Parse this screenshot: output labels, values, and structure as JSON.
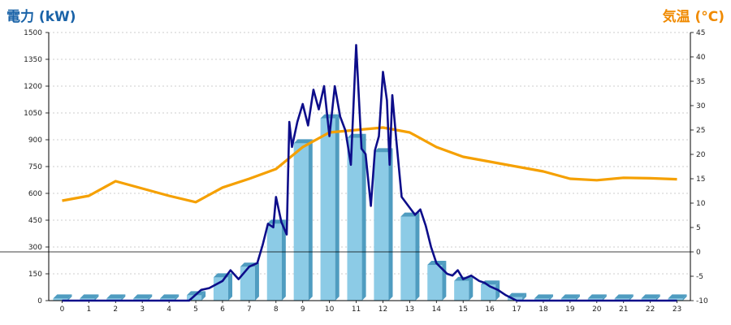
{
  "chart_data": {
    "type": "bar",
    "left_axis_title": "電力 (kW)",
    "right_axis_title": "気温 (°C)",
    "x_ticks": [
      "0",
      "1",
      "2",
      "3",
      "4",
      "5",
      "6",
      "7",
      "8",
      "9",
      "10",
      "11",
      "12",
      "13",
      "14",
      "15",
      "16",
      "17",
      "18",
      "19",
      "20",
      "21",
      "22",
      "23"
    ],
    "left_ticks": [
      "0",
      "150",
      "300",
      "450",
      "600",
      "750",
      "900",
      "1050",
      "1200",
      "1350",
      "1500"
    ],
    "right_ticks": [
      "-10",
      "-5",
      "0",
      "5",
      "10",
      "15",
      "20",
      "25",
      "30",
      "35",
      "40",
      "45"
    ],
    "ylim_left": [
      0,
      1500
    ],
    "ylim_right": [
      -10,
      45
    ],
    "grid": true,
    "colors": {
      "bars": "#8ccbe6",
      "bars_dark": "#4f9cc0",
      "power_line": "#0d0d8a",
      "temp_line": "#f5a000",
      "grid": "#bfbfbf",
      "left_title": "#1a63a8",
      "right_title": "#f08a00"
    },
    "bars": [
      {
        "x": 0,
        "value": 0
      },
      {
        "x": 1,
        "value": 0
      },
      {
        "x": 2,
        "value": 0
      },
      {
        "x": 3,
        "value": 0
      },
      {
        "x": 4,
        "value": 0
      },
      {
        "x": 5,
        "value": 30
      },
      {
        "x": 6,
        "value": 130
      },
      {
        "x": 7,
        "value": 190
      },
      {
        "x": 8,
        "value": 430
      },
      {
        "x": 9,
        "value": 880
      },
      {
        "x": 10,
        "value": 1020
      },
      {
        "x": 11,
        "value": 910
      },
      {
        "x": 12,
        "value": 830
      },
      {
        "x": 13,
        "value": 470
      },
      {
        "x": 14,
        "value": 200
      },
      {
        "x": 15,
        "value": 110
      },
      {
        "x": 16,
        "value": 90
      },
      {
        "x": 17,
        "value": 20
      },
      {
        "x": 18,
        "value": 0
      },
      {
        "x": 19,
        "value": 0
      },
      {
        "x": 20,
        "value": 0
      },
      {
        "x": 21,
        "value": 0
      },
      {
        "x": 22,
        "value": 0
      },
      {
        "x": 23,
        "value": 0
      }
    ],
    "power_line": {
      "x": [
        0,
        1,
        2,
        3,
        4,
        4.75,
        5.2,
        5.5,
        6,
        6.3,
        6.6,
        7,
        7.3,
        7.5,
        7.7,
        7.9,
        8.0,
        8.2,
        8.4,
        8.5,
        8.6,
        8.8,
        9.0,
        9.2,
        9.4,
        9.6,
        9.8,
        10.0,
        10.2,
        10.4,
        10.6,
        10.8,
        11.0,
        11.2,
        11.35,
        11.55,
        11.7,
        11.85,
        12.0,
        12.15,
        12.25,
        12.35,
        12.5,
        12.7,
        13.0,
        13.2,
        13.4,
        13.6,
        13.8,
        14.0,
        14.2,
        14.4,
        14.6,
        14.8,
        15.0,
        15.3,
        15.6,
        15.8,
        16.0,
        16.3,
        16.6,
        17.0,
        17.3,
        18,
        19,
        20,
        21,
        22,
        23
      ],
      "y": [
        0,
        0,
        0,
        0,
        0,
        0,
        60,
        70,
        110,
        170,
        120,
        190,
        210,
        310,
        430,
        410,
        580,
        440,
        370,
        1000,
        860,
        1000,
        1100,
        980,
        1180,
        1070,
        1200,
        920,
        1200,
        1030,
        950,
        760,
        1430,
        850,
        820,
        530,
        840,
        920,
        1280,
        1120,
        760,
        1150,
        900,
        580,
        520,
        480,
        510,
        420,
        300,
        210,
        180,
        150,
        140,
        170,
        120,
        140,
        110,
        100,
        80,
        60,
        30,
        0,
        0,
        0,
        0,
        0,
        0,
        0,
        0
      ]
    },
    "temp_line": {
      "x": [
        0,
        1,
        2,
        3,
        4,
        5,
        6,
        7,
        8,
        9,
        10,
        11,
        12,
        13,
        14,
        15,
        16,
        17,
        18,
        19,
        20,
        21,
        22,
        23
      ],
      "y": [
        10.5,
        11.5,
        14.5,
        13,
        11.5,
        10.2,
        13.2,
        15,
        17,
        21.5,
        24.5,
        25,
        25.5,
        24.5,
        21.5,
        19.5,
        18.5,
        17.5,
        16.5,
        15,
        14.7,
        15.2,
        15.1,
        14.9
      ]
    }
  }
}
